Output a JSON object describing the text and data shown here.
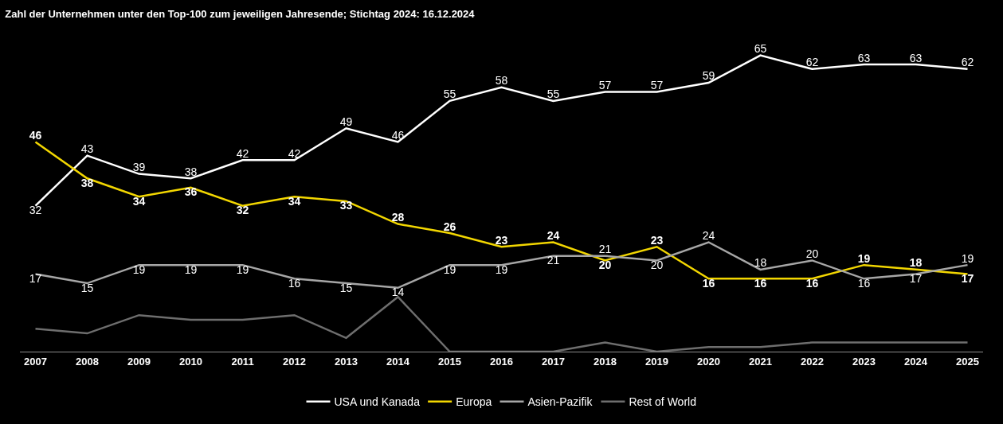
{
  "chart_data": {
    "type": "line",
    "title": "Zahl der Unternehmen unter den Top-100 zum jeweiligen Jahresende; Stichtag 2024: 16.12.2024",
    "categories": [
      "2007",
      "2008",
      "2009",
      "2010",
      "2011",
      "2012",
      "2013",
      "2014",
      "2015",
      "2016",
      "2017",
      "2018",
      "2019",
      "2020",
      "2021",
      "2022",
      "2023",
      "2024",
      "2025"
    ],
    "series": [
      {
        "name": "USA und Kanada",
        "color": "#ffffff",
        "values": [
          32,
          43,
          39,
          38,
          42,
          42,
          49,
          46,
          55,
          58,
          55,
          57,
          57,
          59,
          65,
          62,
          63,
          63,
          62
        ],
        "value_labels": [
          "32",
          "43",
          "39",
          "38",
          "42",
          "42",
          "49",
          "46",
          "55",
          "58",
          "55",
          "57",
          "57",
          "59",
          "65",
          "62",
          "63",
          "63",
          "62"
        ]
      },
      {
        "name": "Europa",
        "color": "#f2d600",
        "values": [
          46,
          38,
          34,
          36,
          32,
          34,
          33,
          28,
          26,
          23,
          24,
          20,
          23,
          16,
          16,
          16,
          19,
          18,
          17
        ],
        "value_labels": [
          "46",
          "38",
          "34",
          "36",
          "32",
          "34",
          "33",
          "28",
          "26",
          "23",
          "24",
          "20",
          "23",
          "16",
          "16",
          "16",
          "19",
          "18",
          "17"
        ]
      },
      {
        "name": "Asien-Pazifik",
        "color": "#a6a6a6",
        "values": [
          17,
          15,
          19,
          19,
          19,
          16,
          15,
          14,
          19,
          19,
          21,
          21,
          20,
          24,
          18,
          20,
          16,
          17,
          19
        ],
        "value_labels": [
          "17",
          "15",
          "19",
          "19",
          "19",
          "16",
          "15",
          "14",
          "19",
          "19",
          "21",
          "21",
          "20",
          "24",
          "18",
          "20",
          "16",
          "17",
          "19"
        ]
      },
      {
        "name": "Rest of World",
        "color": "#6e6e6e",
        "values": [
          5,
          4,
          8,
          7,
          7,
          8,
          3,
          12,
          0,
          0,
          0,
          2,
          0,
          1,
          1,
          2,
          2,
          2,
          2
        ]
      }
    ],
    "legend": "bottom",
    "grid": false,
    "marker": "none",
    "line_style": "solid"
  }
}
